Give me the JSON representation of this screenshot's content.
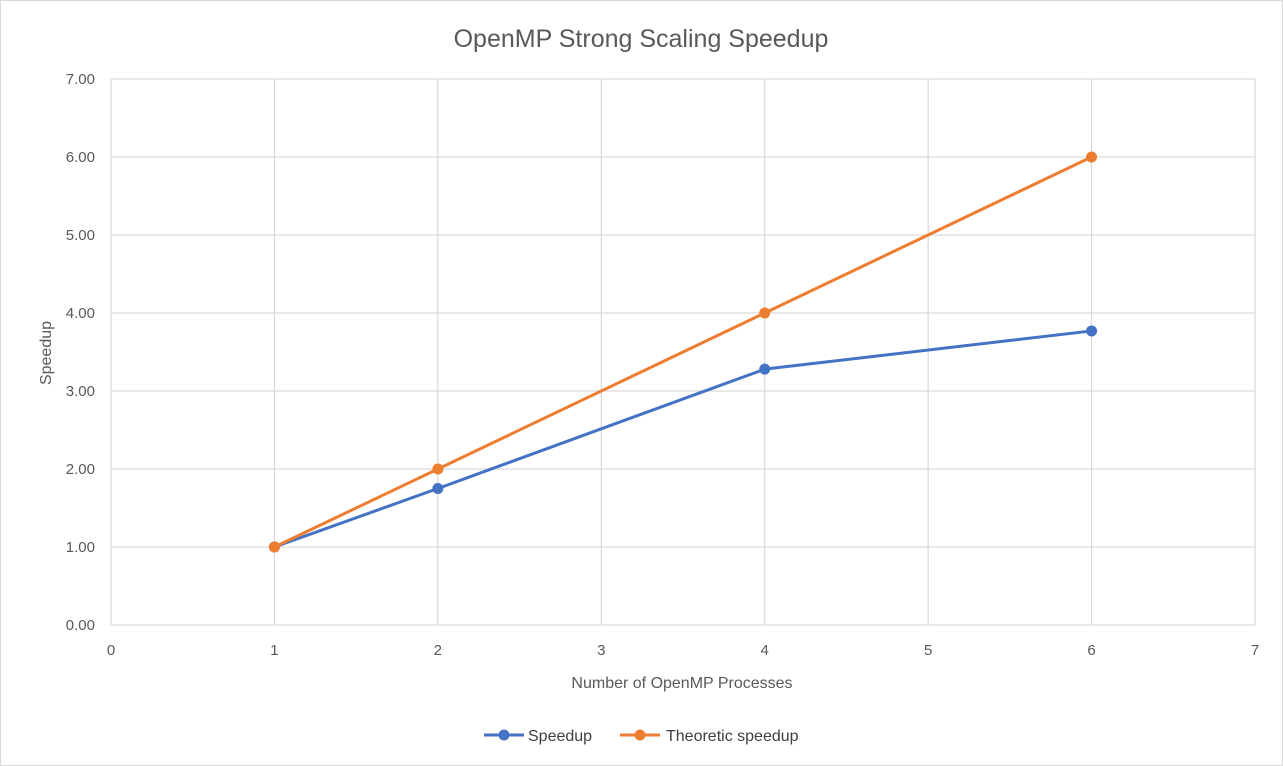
{
  "chart_data": {
    "type": "line",
    "title": "OpenMP Strong Scaling Speedup",
    "xlabel": "Number of OpenMP Processes",
    "ylabel": "Speedup",
    "xlim": [
      0,
      7
    ],
    "ylim": [
      0,
      7
    ],
    "x_ticks": [
      "0",
      "1",
      "2",
      "3",
      "4",
      "5",
      "6",
      "7"
    ],
    "y_ticks": [
      "0.00",
      "1.00",
      "2.00",
      "3.00",
      "4.00",
      "5.00",
      "6.00",
      "7.00"
    ],
    "grid": true,
    "legend_position": "bottom",
    "series": [
      {
        "name": "Speedup",
        "color": "#4472c4",
        "x": [
          1,
          2,
          4,
          6
        ],
        "y": [
          1.0,
          1.75,
          3.28,
          3.77
        ]
      },
      {
        "name": "Theoretic speedup",
        "color": "#ed7d31",
        "x": [
          1,
          2,
          4,
          6
        ],
        "y": [
          1.0,
          2.0,
          4.0,
          6.0
        ]
      }
    ]
  }
}
